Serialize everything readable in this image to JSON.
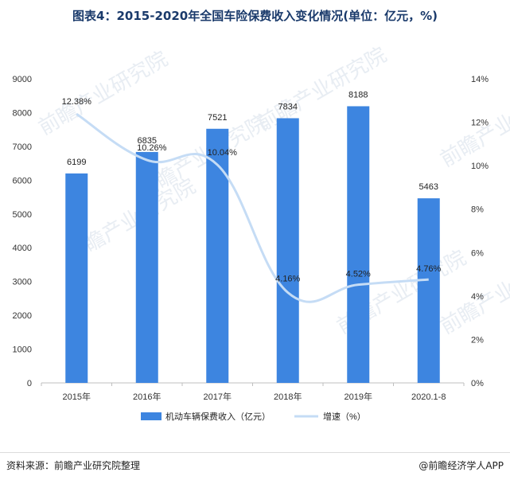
{
  "title": "图表4：2015-2020年全国车险保费收入变化情况(单位：亿元，%)",
  "footer": {
    "source": "资料来源：前瞻产业研究院整理",
    "credit": "@前瞻经济学人APP"
  },
  "watermark": "前瞻产业研究院",
  "colors": {
    "bar": "#3d85e0",
    "line": "#c5dcf5",
    "title": "#1a3a6b",
    "axis": "#333333"
  },
  "chart_data": {
    "type": "bar",
    "categories": [
      "2015年",
      "2016年",
      "2017年",
      "2018年",
      "2019年",
      "2020.1-8"
    ],
    "series": [
      {
        "name": "机动车辆保费收入（亿元）",
        "type": "bar",
        "axis": "left",
        "values": [
          6199,
          6835,
          7521,
          7834,
          8188,
          5463
        ],
        "labels": [
          "6199",
          "6835",
          "7521",
          "7834",
          "8188",
          "5463"
        ]
      },
      {
        "name": "增速（%）",
        "type": "line",
        "axis": "right",
        "values": [
          12.38,
          10.26,
          10.04,
          4.16,
          4.52,
          4.76
        ],
        "labels": [
          "12.38%",
          "10.26%",
          "10.04%",
          "4.16%",
          "4.52%",
          "4.76%"
        ]
      }
    ],
    "y_left": {
      "min": 0,
      "max": 9000,
      "ticks": [
        "0",
        "1000",
        "2000",
        "3000",
        "4000",
        "5000",
        "6000",
        "7000",
        "8000",
        "9000"
      ]
    },
    "y_right": {
      "min": 0,
      "max": 14,
      "ticks": [
        "0%",
        "2%",
        "4%",
        "6%",
        "8%",
        "10%",
        "12%",
        "14%"
      ]
    },
    "grid": false,
    "legend": "bottom"
  }
}
